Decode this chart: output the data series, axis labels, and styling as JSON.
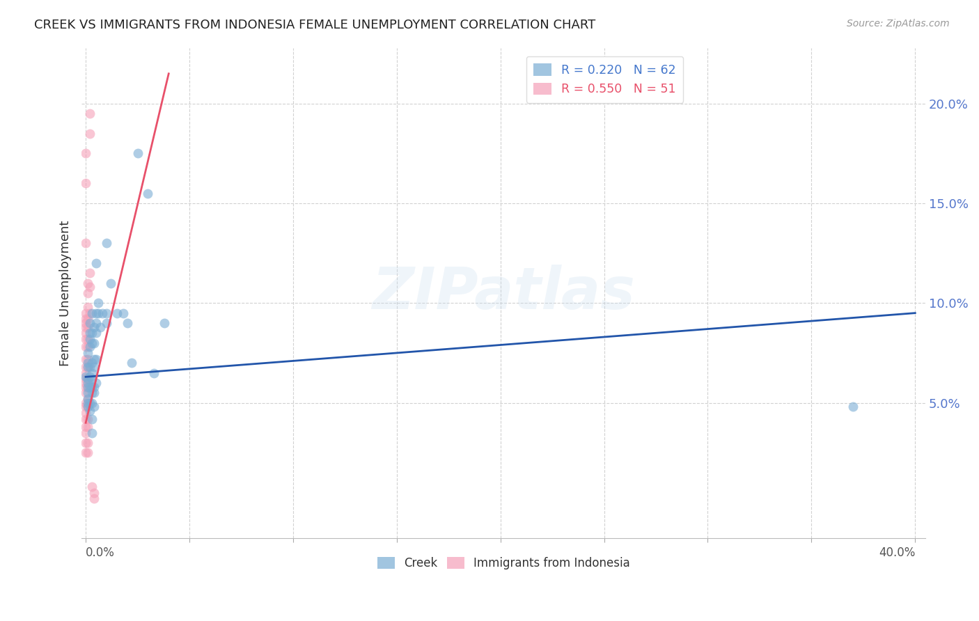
{
  "title": "CREEK VS IMMIGRANTS FROM INDONESIA FEMALE UNEMPLOYMENT CORRELATION CHART",
  "source": "Source: ZipAtlas.com",
  "ylabel": "Female Unemployment",
  "y_tick_labels": [
    "5.0%",
    "10.0%",
    "15.0%",
    "20.0%"
  ],
  "y_tick_values": [
    0.05,
    0.1,
    0.15,
    0.2
  ],
  "xlim": [
    -0.002,
    0.405
  ],
  "ylim": [
    -0.018,
    0.228
  ],
  "creek_color": "#7aadd4",
  "indonesia_color": "#f5a0b8",
  "trendline_creek_color": "#2255aa",
  "trendline_indonesia_color": "#e8506a",
  "watermark_text": "ZIPatlas",
  "creek_scatter": [
    [
      0.0,
      0.063
    ],
    [
      0.001,
      0.06
    ],
    [
      0.001,
      0.055
    ],
    [
      0.001,
      0.05
    ],
    [
      0.001,
      0.048
    ],
    [
      0.001,
      0.07
    ],
    [
      0.001,
      0.075
    ],
    [
      0.001,
      0.068
    ],
    [
      0.001,
      0.062
    ],
    [
      0.001,
      0.058
    ],
    [
      0.001,
      0.052
    ],
    [
      0.002,
      0.09
    ],
    [
      0.002,
      0.085
    ],
    [
      0.002,
      0.082
    ],
    [
      0.002,
      0.078
    ],
    [
      0.002,
      0.068
    ],
    [
      0.002,
      0.063
    ],
    [
      0.002,
      0.058
    ],
    [
      0.002,
      0.05
    ],
    [
      0.002,
      0.046
    ],
    [
      0.003,
      0.095
    ],
    [
      0.003,
      0.085
    ],
    [
      0.003,
      0.08
    ],
    [
      0.003,
      0.07
    ],
    [
      0.003,
      0.065
    ],
    [
      0.003,
      0.062
    ],
    [
      0.003,
      0.058
    ],
    [
      0.003,
      0.055
    ],
    [
      0.003,
      0.05
    ],
    [
      0.003,
      0.042
    ],
    [
      0.003,
      0.035
    ],
    [
      0.004,
      0.088
    ],
    [
      0.004,
      0.08
    ],
    [
      0.004,
      0.072
    ],
    [
      0.004,
      0.068
    ],
    [
      0.004,
      0.058
    ],
    [
      0.004,
      0.055
    ],
    [
      0.004,
      0.048
    ],
    [
      0.005,
      0.12
    ],
    [
      0.005,
      0.095
    ],
    [
      0.005,
      0.09
    ],
    [
      0.005,
      0.085
    ],
    [
      0.005,
      0.072
    ],
    [
      0.005,
      0.06
    ],
    [
      0.006,
      0.1
    ],
    [
      0.006,
      0.095
    ],
    [
      0.007,
      0.088
    ],
    [
      0.008,
      0.095
    ],
    [
      0.01,
      0.13
    ],
    [
      0.01,
      0.095
    ],
    [
      0.01,
      0.09
    ],
    [
      0.012,
      0.11
    ],
    [
      0.015,
      0.095
    ],
    [
      0.018,
      0.095
    ],
    [
      0.02,
      0.09
    ],
    [
      0.022,
      0.07
    ],
    [
      0.025,
      0.175
    ],
    [
      0.03,
      0.155
    ],
    [
      0.033,
      0.065
    ],
    [
      0.038,
      0.09
    ],
    [
      0.37,
      0.048
    ]
  ],
  "indonesia_scatter": [
    [
      0.0,
      0.175
    ],
    [
      0.0,
      0.16
    ],
    [
      0.0,
      0.13
    ],
    [
      0.0,
      0.095
    ],
    [
      0.0,
      0.092
    ],
    [
      0.0,
      0.09
    ],
    [
      0.0,
      0.088
    ],
    [
      0.0,
      0.085
    ],
    [
      0.0,
      0.082
    ],
    [
      0.0,
      0.078
    ],
    [
      0.0,
      0.072
    ],
    [
      0.0,
      0.068
    ],
    [
      0.0,
      0.065
    ],
    [
      0.0,
      0.062
    ],
    [
      0.0,
      0.06
    ],
    [
      0.0,
      0.058
    ],
    [
      0.0,
      0.055
    ],
    [
      0.0,
      0.05
    ],
    [
      0.0,
      0.048
    ],
    [
      0.0,
      0.045
    ],
    [
      0.0,
      0.042
    ],
    [
      0.0,
      0.038
    ],
    [
      0.0,
      0.035
    ],
    [
      0.0,
      0.03
    ],
    [
      0.0,
      0.025
    ],
    [
      0.001,
      0.11
    ],
    [
      0.001,
      0.105
    ],
    [
      0.001,
      0.098
    ],
    [
      0.001,
      0.092
    ],
    [
      0.001,
      0.088
    ],
    [
      0.001,
      0.082
    ],
    [
      0.001,
      0.078
    ],
    [
      0.001,
      0.072
    ],
    [
      0.001,
      0.068
    ],
    [
      0.001,
      0.062
    ],
    [
      0.001,
      0.058
    ],
    [
      0.001,
      0.052
    ],
    [
      0.001,
      0.048
    ],
    [
      0.001,
      0.042
    ],
    [
      0.001,
      0.038
    ],
    [
      0.001,
      0.03
    ],
    [
      0.001,
      0.025
    ],
    [
      0.002,
      0.195
    ],
    [
      0.002,
      0.185
    ],
    [
      0.002,
      0.115
    ],
    [
      0.002,
      0.108
    ],
    [
      0.002,
      0.095
    ],
    [
      0.003,
      0.008
    ],
    [
      0.004,
      0.005
    ],
    [
      0.004,
      0.002
    ]
  ],
  "creek_trendline": {
    "x_start": 0.0,
    "y_start": 0.063,
    "x_end": 0.4,
    "y_end": 0.095
  },
  "indonesia_trendline": {
    "x_start": 0.0,
    "y_start": 0.04,
    "x_end": 0.04,
    "y_end": 0.215
  }
}
